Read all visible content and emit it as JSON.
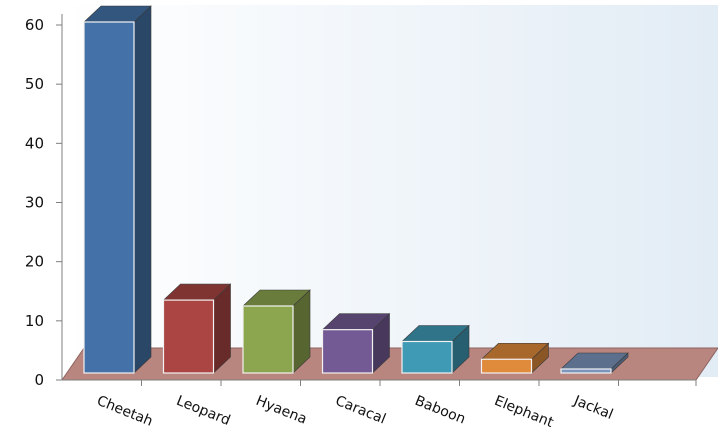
{
  "chart_data": {
    "type": "bar",
    "title": "",
    "xlabel": "",
    "ylabel": "",
    "categories": [
      "Cheetah",
      "Leopard",
      "Hyaena",
      "Caracal",
      "Baboon",
      "Elephant",
      "Jackal"
    ],
    "values": [
      60,
      13,
      12,
      8,
      6,
      3,
      0.5
    ],
    "ylim": [
      0,
      60
    ],
    "yticks": [
      "0",
      "10",
      "20",
      "30",
      "40",
      "50",
      "60"
    ],
    "grid": false,
    "legend": "none",
    "style": "3d",
    "colors": [
      "#4472a8",
      "#aa4543",
      "#8ca54f",
      "#735a94",
      "#3f9ab5",
      "#e08a3b",
      "#7b95bd"
    ],
    "floor_color": "#b8857f",
    "background_gradient": [
      "#ffffff",
      "#e2ecf5"
    ]
  }
}
